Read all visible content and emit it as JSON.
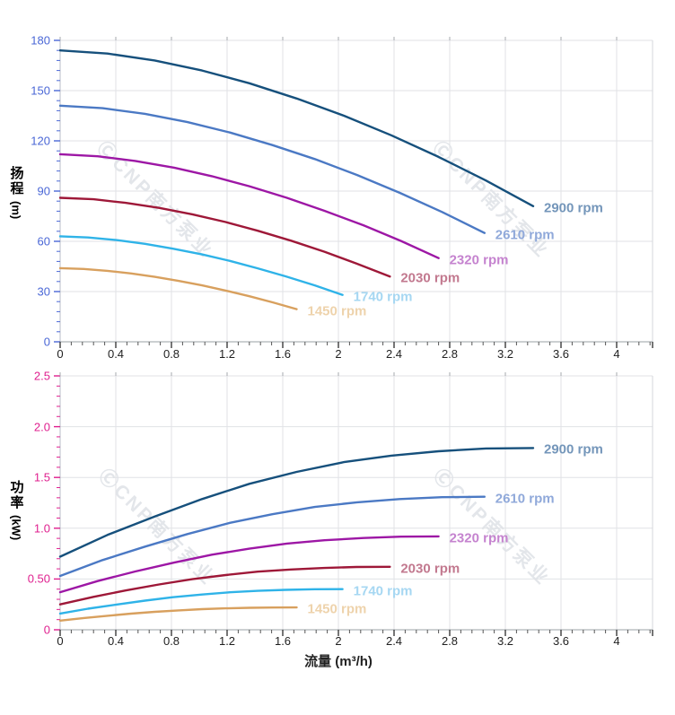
{
  "page": {
    "background": "#ffffff"
  },
  "watermark": {
    "text": "ⒸCNP南方泵业",
    "color": "#cdd2da"
  },
  "chart_data": [
    {
      "id": "head",
      "type": "line",
      "title": "",
      "xlabel": "",
      "ylabel": "扬程 (m)",
      "ylabel_main": "扬程",
      "ylabel_unit": "(m)",
      "axis_color": "#4a67d6",
      "grid": true,
      "legend_position": "end-of-line-labels",
      "xlim": [
        0,
        4
      ],
      "ylim": [
        0,
        180
      ],
      "x_tick_values": [
        0,
        0.4,
        0.8,
        1.2,
        1.6,
        2,
        2.4,
        2.8,
        3.2,
        3.6,
        4
      ],
      "x_tick_labels": [
        "0",
        "0.4",
        "0.8",
        "1.2",
        "1.6",
        "2",
        "2.4",
        "2.8",
        "3.2",
        "3.6",
        "4"
      ],
      "y_tick_values": [
        0,
        30,
        60,
        90,
        120,
        150,
        180
      ],
      "y_tick_labels": [
        "0",
        "30",
        "60",
        "90",
        "120",
        "150",
        "180"
      ],
      "series": [
        {
          "name": "2900 rpm",
          "color": "#16507c",
          "label_color": "#7496ba",
          "points": [
            [
              0,
              174
            ],
            [
              0.34,
              172.1
            ],
            [
              0.68,
              168
            ],
            [
              1.02,
              162
            ],
            [
              1.36,
              154.4
            ],
            [
              1.7,
              145.3
            ],
            [
              2.04,
              135
            ],
            [
              2.38,
              123.3
            ],
            [
              2.72,
              110.4
            ],
            [
              3.06,
              96.3
            ],
            [
              3.4,
              81
            ]
          ]
        },
        {
          "name": "2610 rpm",
          "color": "#4b79c4",
          "label_color": "#90a9da",
          "points": [
            [
              0,
              141
            ],
            [
              0.305,
              139.5
            ],
            [
              0.61,
              136.1
            ],
            [
              0.915,
              131.2
            ],
            [
              1.22,
              125
            ],
            [
              1.525,
              117.5
            ],
            [
              1.83,
              109.1
            ],
            [
              2.135,
              99.6
            ],
            [
              2.44,
              89
            ],
            [
              2.745,
              77.5
            ],
            [
              3.05,
              65
            ]
          ]
        },
        {
          "name": "2320 rpm",
          "color": "#9d17a5",
          "label_color": "#c583cf",
          "points": [
            [
              0,
              112
            ],
            [
              0.27,
              110.8
            ],
            [
              0.54,
              108
            ],
            [
              0.82,
              104
            ],
            [
              1.09,
              98.9
            ],
            [
              1.36,
              92.9
            ],
            [
              1.63,
              86
            ],
            [
              1.9,
              78.2
            ],
            [
              2.18,
              69.6
            ],
            [
              2.45,
              60.2
            ],
            [
              2.72,
              50
            ]
          ]
        },
        {
          "name": "2030 rpm",
          "color": "#9e1838",
          "label_color": "#c2798f",
          "points": [
            [
              0,
              86
            ],
            [
              0.24,
              85.1
            ],
            [
              0.47,
              83
            ],
            [
              0.71,
              80
            ],
            [
              0.95,
              76.1
            ],
            [
              1.19,
              71.5
            ],
            [
              1.42,
              66.3
            ],
            [
              1.66,
              60.4
            ],
            [
              1.9,
              53.8
            ],
            [
              2.13,
              46.7
            ],
            [
              2.37,
              39
            ]
          ]
        },
        {
          "name": "1740 rpm",
          "color": "#2fb3e8",
          "label_color": "#a6d7f2",
          "points": [
            [
              0,
              63
            ],
            [
              0.2,
              62.3
            ],
            [
              0.41,
              60.7
            ],
            [
              0.61,
              58.5
            ],
            [
              0.81,
              55.6
            ],
            [
              1.02,
              52.2
            ],
            [
              1.22,
              48.3
            ],
            [
              1.42,
              43.9
            ],
            [
              1.62,
              39.1
            ],
            [
              1.83,
              33.7
            ],
            [
              2.03,
              28
            ]
          ]
        },
        {
          "name": "1450 rpm",
          "color": "#d8a05e",
          "label_color": "#eed3ac",
          "points": [
            [
              0,
              44
            ],
            [
              0.17,
              43.5
            ],
            [
              0.34,
              42.4
            ],
            [
              0.51,
              40.8
            ],
            [
              0.68,
              38.8
            ],
            [
              0.85,
              36.4
            ],
            [
              1.02,
              33.7
            ],
            [
              1.19,
              30.6
            ],
            [
              1.36,
              27.2
            ],
            [
              1.53,
              23.5
            ],
            [
              1.7,
              19.5
            ]
          ]
        }
      ]
    },
    {
      "id": "power",
      "type": "line",
      "title": "",
      "xlabel": "流量 (m³/h)",
      "ylabel": "功率 (kW)",
      "ylabel_main": "功率",
      "ylabel_unit": "(kW)",
      "axis_color": "#df1f8e",
      "grid": true,
      "legend_position": "end-of-line-labels",
      "xlim": [
        0,
        4
      ],
      "ylim": [
        0,
        2.5
      ],
      "x_tick_values": [
        0,
        0.4,
        0.8,
        1.2,
        1.6,
        2,
        2.4,
        2.8,
        3.2,
        3.6,
        4
      ],
      "x_tick_labels": [
        "0",
        "0.4",
        "0.8",
        "1.2",
        "1.6",
        "2",
        "2.4",
        "2.8",
        "3.2",
        "3.6",
        "4"
      ],
      "y_tick_values": [
        0,
        0.5,
        1,
        1.5,
        2,
        2.5
      ],
      "y_tick_labels": [
        "0",
        "0.50",
        "1.0",
        "1.5",
        "2.0",
        "2.5"
      ],
      "series": [
        {
          "name": "2900 rpm",
          "color": "#16507c",
          "label_color": "#7496ba",
          "points": [
            [
              0,
              0.72
            ],
            [
              0.34,
              0.934
            ],
            [
              0.68,
              1.116
            ],
            [
              1.02,
              1.287
            ],
            [
              1.36,
              1.437
            ],
            [
              1.7,
              1.555
            ],
            [
              2.04,
              1.651
            ],
            [
              2.38,
              1.715
            ],
            [
              2.72,
              1.758
            ],
            [
              3.06,
              1.785
            ],
            [
              3.4,
              1.79
            ]
          ]
        },
        {
          "name": "2610 rpm",
          "color": "#4b79c4",
          "label_color": "#90a9da",
          "points": [
            [
              0,
              0.53
            ],
            [
              0.305,
              0.686
            ],
            [
              0.61,
              0.819
            ],
            [
              0.915,
              0.943
            ],
            [
              1.22,
              1.053
            ],
            [
              1.525,
              1.138
            ],
            [
              1.83,
              1.209
            ],
            [
              2.135,
              1.255
            ],
            [
              2.44,
              1.287
            ],
            [
              2.745,
              1.306
            ],
            [
              3.05,
              1.31
            ]
          ]
        },
        {
          "name": "2320 rpm",
          "color": "#9d17a5",
          "label_color": "#c583cf",
          "points": [
            [
              0,
              0.37
            ],
            [
              0.27,
              0.48
            ],
            [
              0.54,
              0.574
            ],
            [
              0.82,
              0.662
            ],
            [
              1.09,
              0.739
            ],
            [
              1.36,
              0.799
            ],
            [
              1.63,
              0.849
            ],
            [
              1.9,
              0.882
            ],
            [
              2.18,
              0.904
            ],
            [
              2.45,
              0.917
            ],
            [
              2.72,
              0.92
            ]
          ]
        },
        {
          "name": "2030 rpm",
          "color": "#9e1838",
          "label_color": "#c2798f",
          "points": [
            [
              0,
              0.25
            ],
            [
              0.24,
              0.324
            ],
            [
              0.47,
              0.387
            ],
            [
              0.71,
              0.446
            ],
            [
              0.95,
              0.498
            ],
            [
              1.19,
              0.539
            ],
            [
              1.42,
              0.572
            ],
            [
              1.66,
              0.594
            ],
            [
              1.9,
              0.609
            ],
            [
              2.13,
              0.618
            ],
            [
              2.37,
              0.62
            ]
          ]
        },
        {
          "name": "1740 rpm",
          "color": "#2fb3e8",
          "label_color": "#a6d7f2",
          "points": [
            [
              0,
              0.16
            ],
            [
              0.2,
              0.208
            ],
            [
              0.41,
              0.249
            ],
            [
              0.61,
              0.287
            ],
            [
              0.81,
              0.321
            ],
            [
              1.02,
              0.347
            ],
            [
              1.22,
              0.369
            ],
            [
              1.42,
              0.383
            ],
            [
              1.62,
              0.393
            ],
            [
              1.83,
              0.399
            ],
            [
              2.03,
              0.4
            ]
          ]
        },
        {
          "name": "1450 rpm",
          "color": "#d8a05e",
          "label_color": "#eed3ac",
          "points": [
            [
              0,
              0.09
            ],
            [
              0.17,
              0.116
            ],
            [
              0.34,
              0.138
            ],
            [
              0.51,
              0.159
            ],
            [
              0.68,
              0.177
            ],
            [
              0.85,
              0.191
            ],
            [
              1.02,
              0.203
            ],
            [
              1.19,
              0.211
            ],
            [
              1.36,
              0.216
            ],
            [
              1.53,
              0.219
            ],
            [
              1.7,
              0.22
            ]
          ]
        }
      ]
    }
  ]
}
